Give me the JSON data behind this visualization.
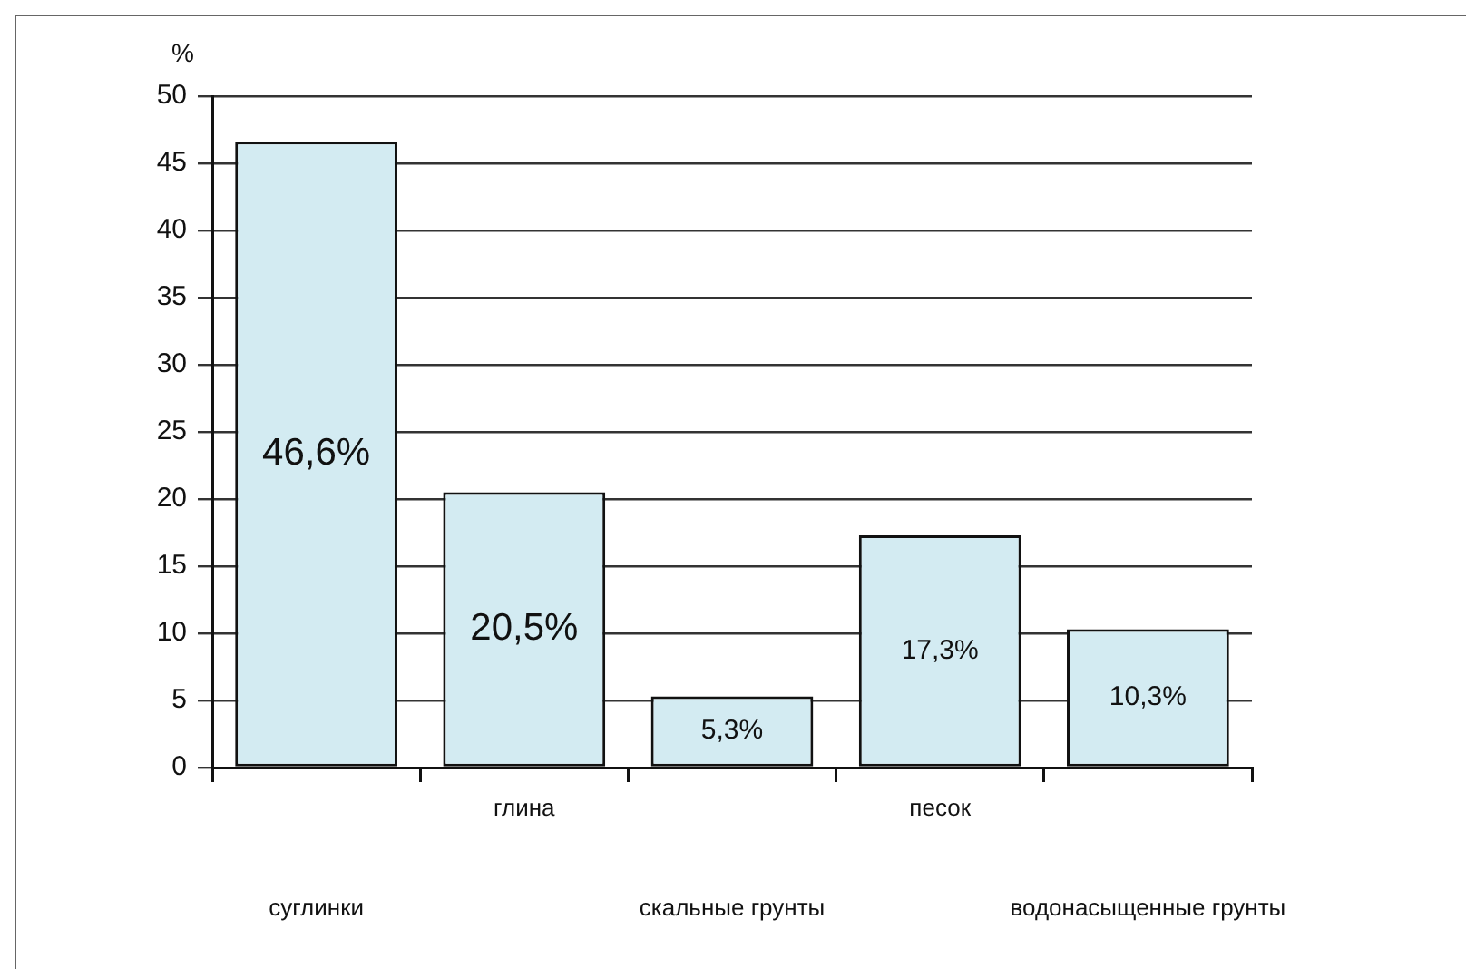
{
  "chart_data": {
    "type": "bar",
    "ylabel": "%",
    "categories": [
      "суглинки",
      "глина",
      "скальные грунты",
      "песок",
      "водонасыщенные грунты"
    ],
    "values": [
      46.6,
      20.5,
      5.3,
      17.3,
      10.3
    ],
    "value_labels": [
      "46,6%",
      "20,5%",
      "5,3%",
      "17,3%",
      "10,3%"
    ],
    "color": "#d3ebf2",
    "ylim": [
      0,
      50
    ],
    "yticks": [
      0,
      5,
      10,
      15,
      20,
      25,
      30,
      35,
      40,
      45,
      50
    ],
    "grid": "y"
  }
}
